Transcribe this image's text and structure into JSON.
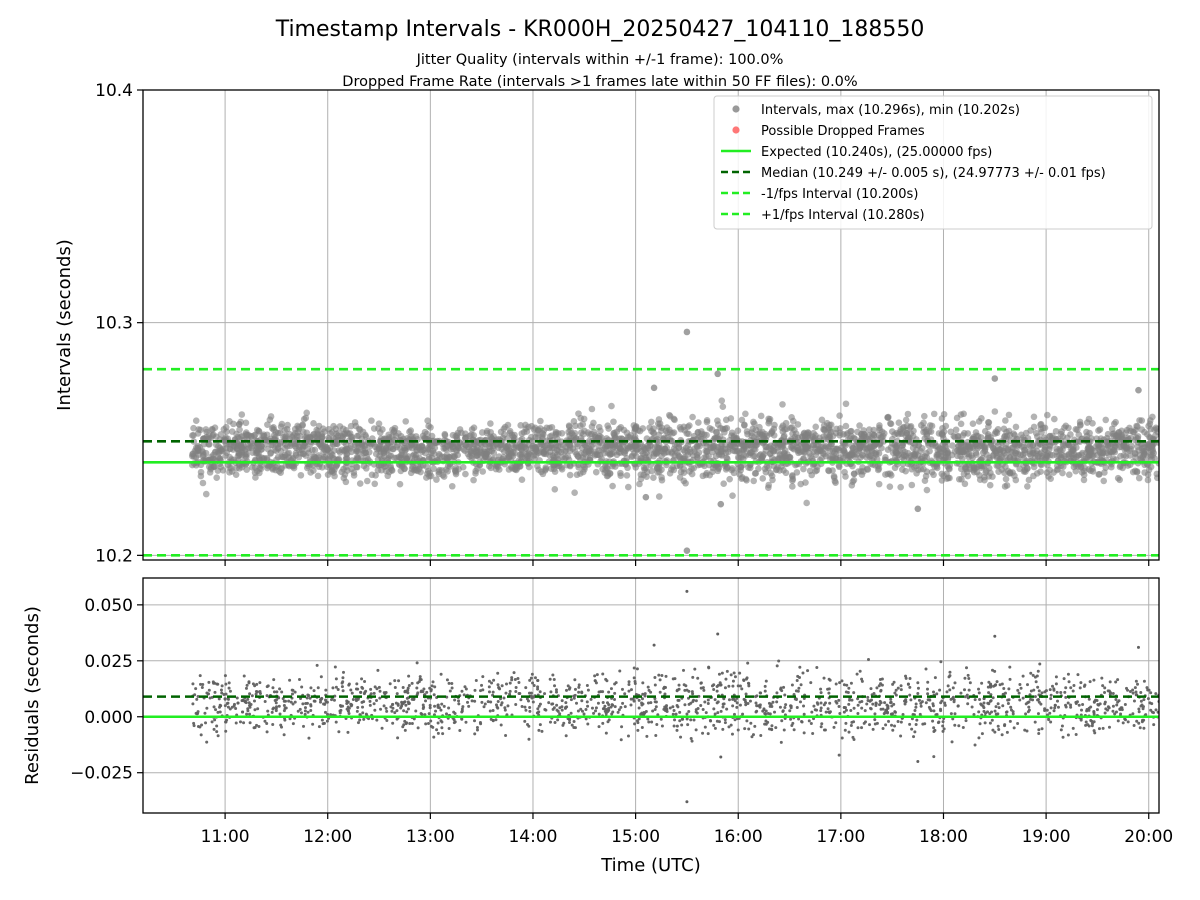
{
  "title": "Timestamp Intervals - KR000H_20250427_104110_188550",
  "subtitles": [
    "Jitter Quality (intervals within +/-1 frame): 100.0%",
    "Dropped Frame Rate (intervals >1 frames late within 50 FF files): 0.0%"
  ],
  "colors": {
    "points": "#808080",
    "dropped": "#ff5555",
    "expected": "#22ee22",
    "median": "#006400",
    "bound": "#22ee22",
    "grid": "#b0b0b0"
  },
  "chart_data": [
    {
      "type": "scatter",
      "ylabel": "Intervals (seconds)",
      "xlim": [
        10.2,
        20.1
      ],
      "ylim": [
        10.198,
        10.4
      ],
      "yticks": [
        10.2,
        10.3,
        10.4
      ],
      "ytick_labels": [
        "10.2",
        "10.3",
        "10.4"
      ],
      "grid": true,
      "legend_position": "top-right",
      "hlines": [
        {
          "name": "Expected (10.240s), (25.00000 fps)",
          "y": 10.24,
          "style": "solid",
          "color": "#22ee22"
        },
        {
          "name": "Median (10.249 +/- 0.005 s), (24.97773 +/- 0.01 fps)",
          "y": 10.249,
          "style": "dashed",
          "color": "#006400"
        },
        {
          "name": "-1/fps Interval (10.200s)",
          "y": 10.2,
          "style": "dashed",
          "color": "#22ee22"
        },
        {
          "name": "+1/fps Interval (10.280s)",
          "y": 10.28,
          "style": "dashed",
          "color": "#22ee22"
        }
      ],
      "series": [
        {
          "name": "Intervals, max (10.296s), min (10.202s)",
          "color": "#808080",
          "x_range": [
            10.68,
            20.1
          ],
          "points_count": 3300,
          "baseline": 10.245,
          "spread": 0.006,
          "notable_points": [
            {
              "x": 15.5,
              "y": 10.296
            },
            {
              "x": 15.5,
              "y": 10.202
            },
            {
              "x": 15.8,
              "y": 10.278
            },
            {
              "x": 18.5,
              "y": 10.276
            },
            {
              "x": 19.9,
              "y": 10.271
            },
            {
              "x": 15.18,
              "y": 10.272
            },
            {
              "x": 17.75,
              "y": 10.22
            },
            {
              "x": 15.83,
              "y": 10.222
            },
            {
              "x": 15.1,
              "y": 10.225
            }
          ]
        },
        {
          "name": "Possible Dropped Frames",
          "color": "#ff5555",
          "points": []
        }
      ]
    },
    {
      "type": "scatter",
      "xlabel": "Time (UTC)",
      "ylabel": "Residuals (seconds)",
      "xlim": [
        10.2,
        20.1
      ],
      "ylim": [
        -0.043,
        0.062
      ],
      "yticks": [
        -0.025,
        0,
        0.025,
        0.05
      ],
      "ytick_labels": [
        "−0.025",
        "0.000",
        "0.025",
        "0.050"
      ],
      "xticks": [
        11,
        12,
        13,
        14,
        15,
        16,
        17,
        18,
        19,
        20
      ],
      "xtick_labels": [
        "11:00",
        "12:00",
        "13:00",
        "14:00",
        "15:00",
        "16:00",
        "17:00",
        "18:00",
        "19:00",
        "20:00"
      ],
      "grid": true,
      "hlines": [
        {
          "y": 0.0,
          "style": "solid",
          "color": "#22ee22"
        },
        {
          "y": 0.009,
          "style": "dashed",
          "color": "#006400"
        }
      ],
      "series": [
        {
          "name": "Residuals",
          "color": "#606060",
          "x_range": [
            10.68,
            20.1
          ],
          "points_count": 1800,
          "baseline": 0.005,
          "spread": 0.006,
          "notable_points": [
            {
              "x": 15.5,
              "y": 0.056
            },
            {
              "x": 15.5,
              "y": -0.038
            },
            {
              "x": 15.8,
              "y": 0.037
            },
            {
              "x": 18.5,
              "y": 0.036
            },
            {
              "x": 15.18,
              "y": 0.032
            },
            {
              "x": 19.9,
              "y": 0.031
            },
            {
              "x": 15.83,
              "y": -0.018
            },
            {
              "x": 17.75,
              "y": -0.02
            }
          ]
        }
      ]
    }
  ]
}
